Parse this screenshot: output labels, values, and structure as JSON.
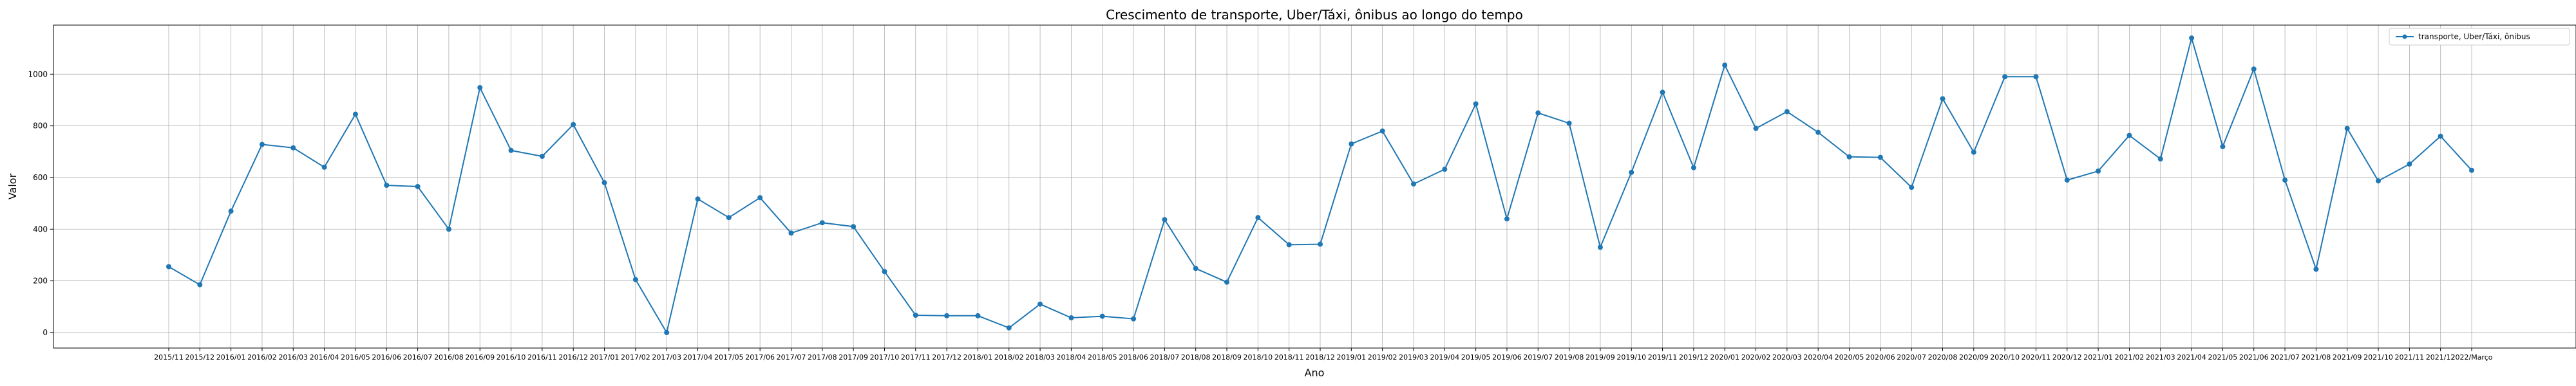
{
  "chart_data": {
    "type": "line",
    "title": "Crescimento de transporte, Uber/Táxi, ônibus ao longo do tempo",
    "xlabel": "Ano",
    "ylabel": "Valor",
    "ylim": [
      -60,
      1190
    ],
    "yticks": [
      0,
      200,
      400,
      600,
      800,
      1000
    ],
    "grid": true,
    "legend_position": "top-right",
    "color": "#1f77b4",
    "series": [
      {
        "name": "transporte, Uber/Táxi, ônibus",
        "values": [
          255,
          185,
          470,
          728,
          715,
          640,
          845,
          570,
          565,
          400,
          948,
          705,
          682,
          805,
          580,
          205,
          0,
          517,
          445,
          522,
          385,
          425,
          410,
          236,
          67,
          65,
          65,
          18,
          110,
          57,
          63,
          53,
          437,
          248,
          195,
          445,
          340,
          342,
          730,
          780,
          575,
          632,
          885,
          440,
          850,
          810,
          330,
          620,
          930,
          638,
          1035,
          790,
          855,
          775,
          680,
          678,
          562,
          905,
          698,
          990,
          990,
          590,
          625,
          763,
          672,
          1140,
          720,
          1020,
          590,
          245,
          790,
          587,
          652,
          760,
          628
        ]
      }
    ],
    "x_labels": [
      "2015/11",
      "2015/12",
      "2016/01",
      "2016/02",
      "2016/03",
      "2016/04",
      "2016/05",
      "2016/06",
      "2016/07",
      "2016/08",
      "2016/09",
      "2016/10",
      "2016/11",
      "2016/12",
      "2017/01",
      "2017/02",
      "2017/03",
      "2017/04",
      "2017/05",
      "2017/06",
      "2017/07",
      "2017/08",
      "2017/09",
      "2017/10",
      "2017/11",
      "2017/12",
      "2018/01",
      "2018/02",
      "2018/03",
      "2018/04",
      "2018/05",
      "2018/06",
      "2018/07",
      "2018/08",
      "2018/09",
      "2018/10",
      "2018/11",
      "2018/12",
      "2019/01",
      "2019/02",
      "2019/03",
      "2019/04",
      "2019/05",
      "2019/06",
      "2019/07",
      "2019/08",
      "2019/09",
      "2019/10",
      "2019/11",
      "2019/12",
      "2020/01",
      "2020/02",
      "2020/03",
      "2020/04",
      "2020/05",
      "2020/06",
      "2020/07",
      "2020/08",
      "2020/09",
      "2020/10",
      "2020/11",
      "2020/12",
      "2021/01",
      "2021/02",
      "2021/03",
      "2021/04",
      "2021/05",
      "2021/06",
      "2021/07",
      "2021/08",
      "2021/09",
      "2021/10",
      "2021/11",
      "2021/12",
      "2022/Março"
    ]
  }
}
